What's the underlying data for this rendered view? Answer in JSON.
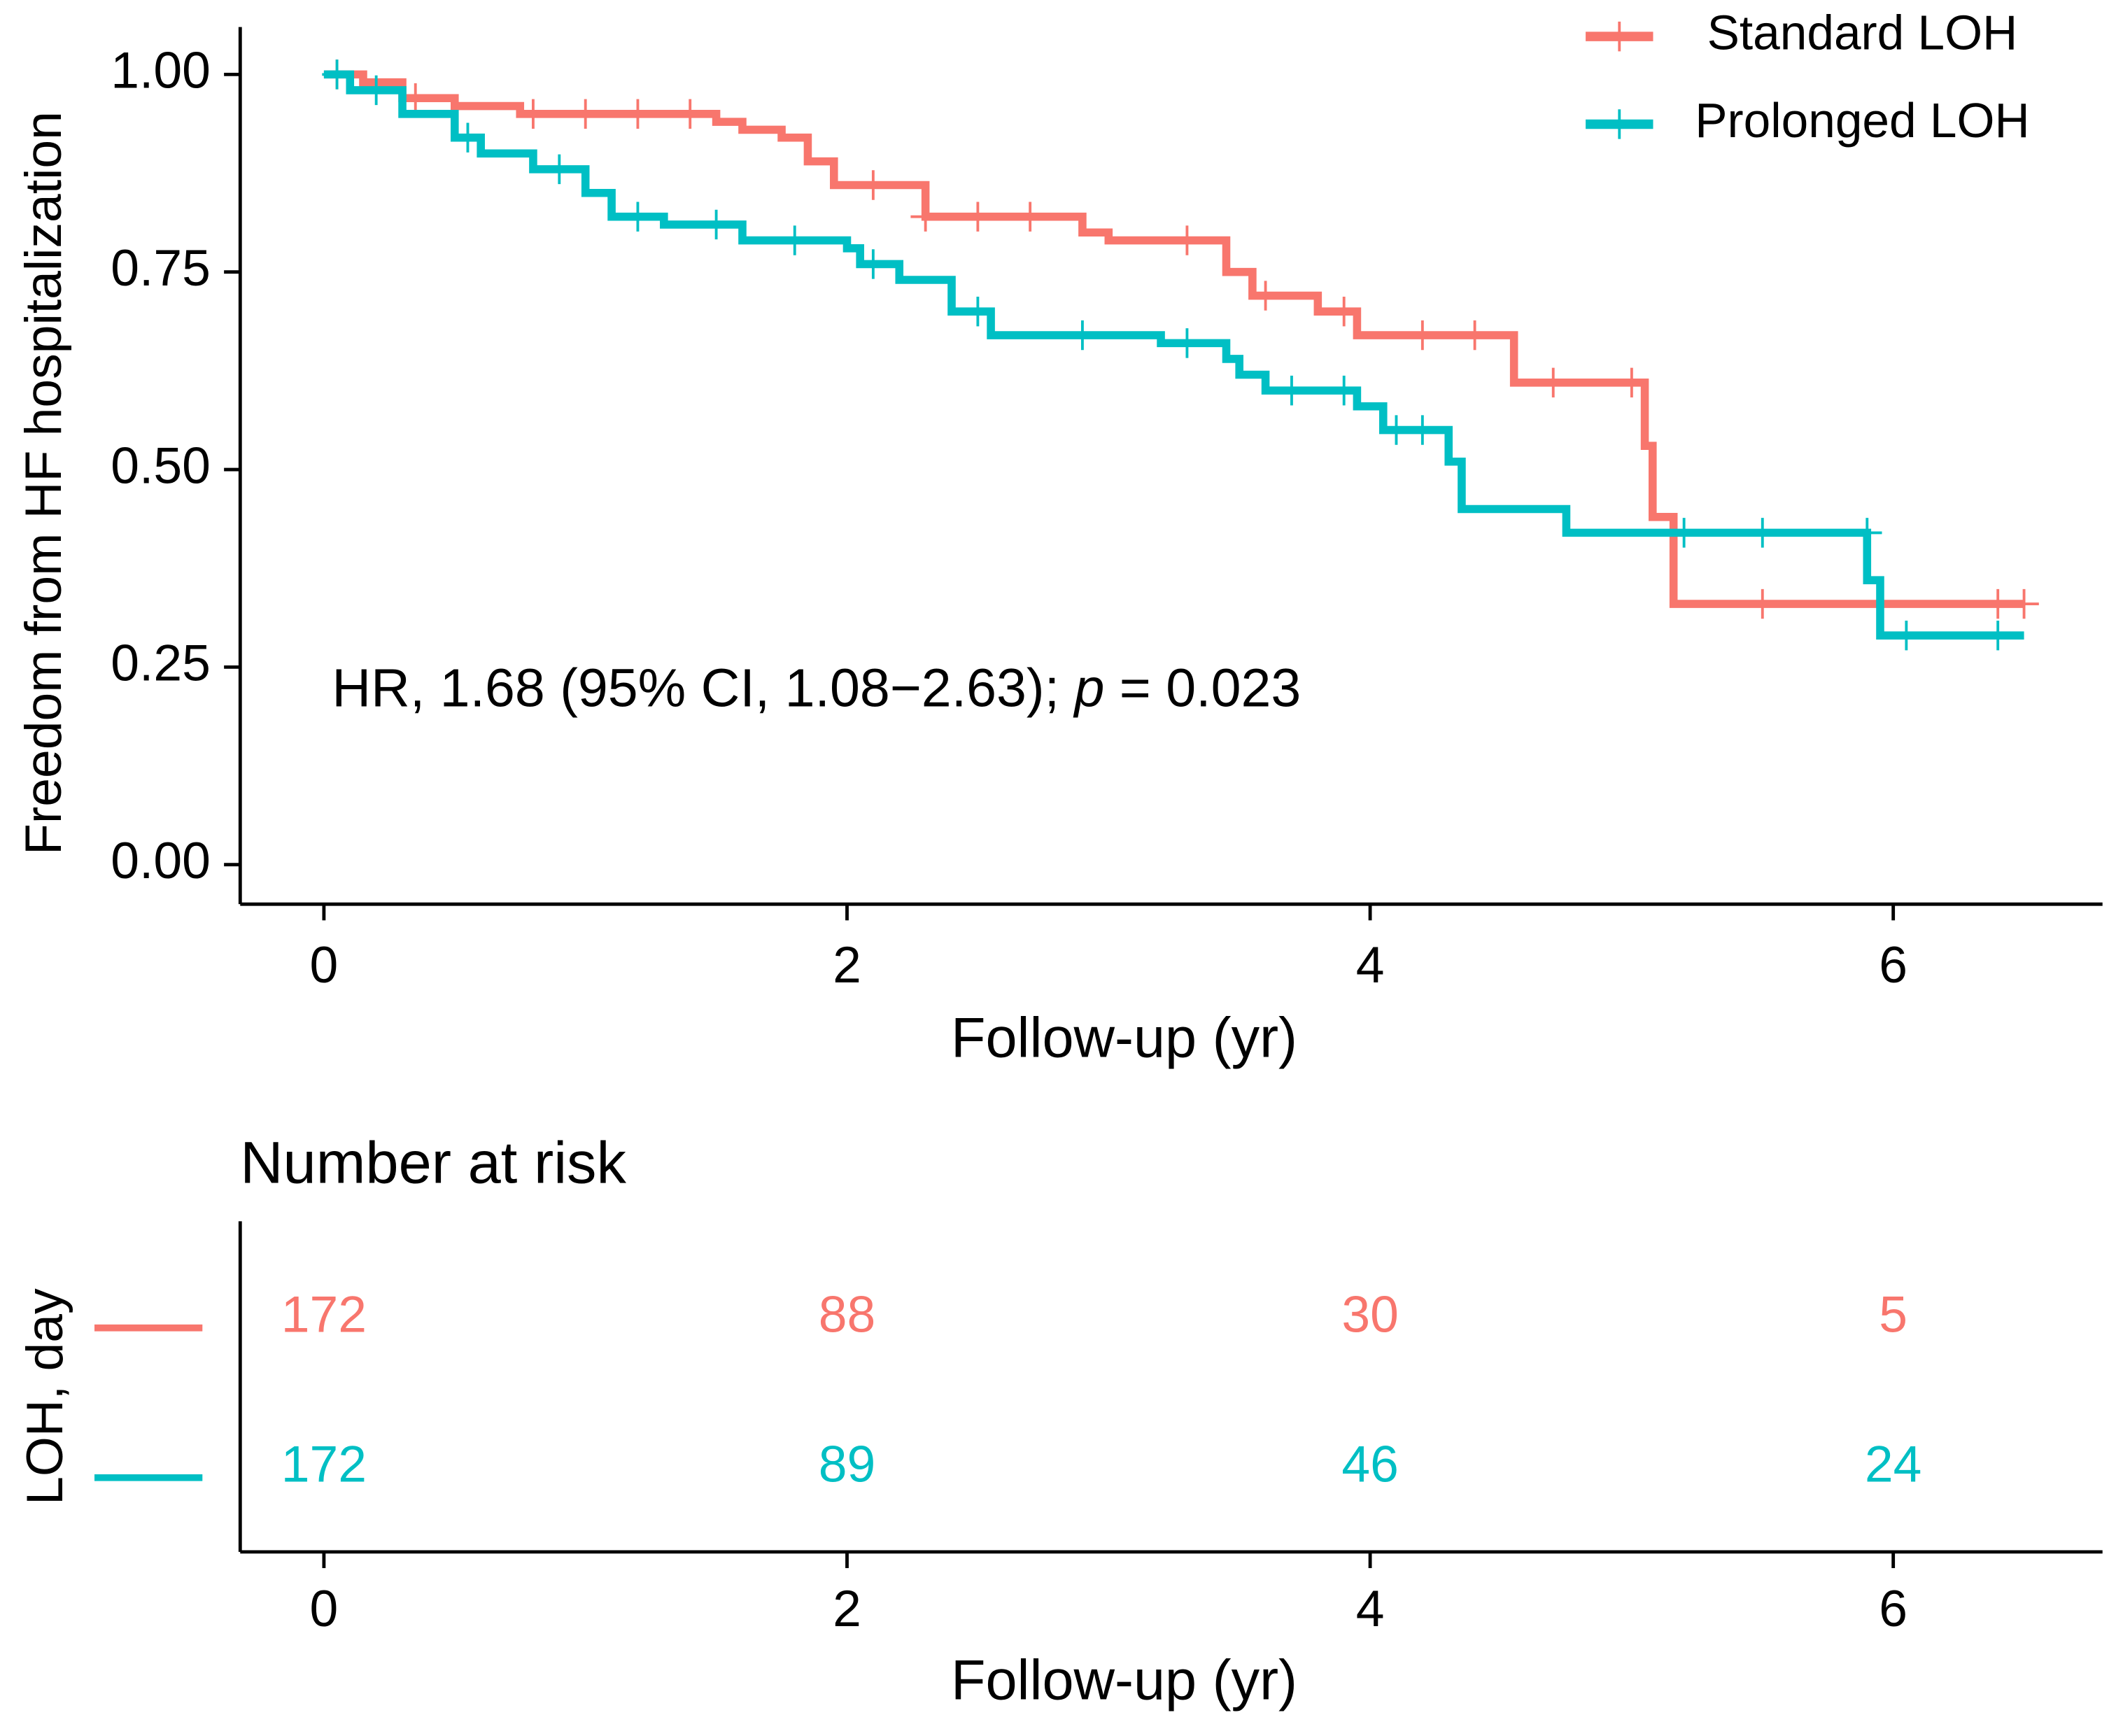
{
  "chart_data": [
    {
      "type": "step",
      "ylabel": "Freedom from HF hospitalization",
      "xlabel": "Follow-up (yr)",
      "xlim": [
        -0.32,
        6.8
      ],
      "xticks": [
        0,
        2,
        4,
        6
      ],
      "ylim": [
        -0.05,
        1.06
      ],
      "yticks": [
        {
          "value": 0,
          "label": "0.00"
        },
        {
          "value": 0.25,
          "label": "0.25"
        },
        {
          "value": 0.5,
          "label": "0.50"
        },
        {
          "value": 0.75,
          "label": "0.75"
        },
        {
          "value": 1,
          "label": "1.00"
        }
      ],
      "legend": "top-right",
      "annotation": {
        "prefix": "HR, 1.68 (95% CI, 1.08−2.63); ",
        "italic": "p",
        "suffix": " = 0.023"
      },
      "series": [
        {
          "name": "Standard LOH",
          "color": "#F8766D",
          "x": [
            0,
            0.15,
            0.3,
            0.5,
            0.75,
            1.5,
            1.6,
            1.75,
            1.85,
            1.95,
            2.3,
            2.9,
            3.0,
            3.45,
            3.55,
            3.8,
            3.95,
            4.55,
            5.05,
            5.08,
            5.16,
            6.5
          ],
          "values": [
            1.0,
            0.99,
            0.97,
            0.96,
            0.95,
            0.94,
            0.93,
            0.92,
            0.89,
            0.86,
            0.82,
            0.8,
            0.79,
            0.75,
            0.72,
            0.7,
            0.67,
            0.61,
            0.53,
            0.44,
            0.33,
            0.33
          ],
          "censor_x": [
            0.05,
            0.35,
            0.8,
            1.0,
            1.2,
            1.4,
            2.1,
            2.3,
            2.5,
            2.7,
            3.3,
            3.6,
            3.9,
            4.2,
            4.4,
            4.7,
            5.0,
            5.5,
            6.4,
            6.5
          ],
          "censor_y": [
            1.0,
            0.97,
            0.95,
            0.95,
            0.95,
            0.95,
            0.86,
            0.82,
            0.82,
            0.82,
            0.79,
            0.72,
            0.7,
            0.67,
            0.67,
            0.61,
            0.61,
            0.33,
            0.33,
            0.33
          ]
        },
        {
          "name": "Prolonged LOH",
          "color": "#00BFC4",
          "x": [
            0,
            0.1,
            0.3,
            0.5,
            0.6,
            0.8,
            1.0,
            1.1,
            1.3,
            1.6,
            2.0,
            2.05,
            2.2,
            2.4,
            2.55,
            3.2,
            3.45,
            3.5,
            3.6,
            3.95,
            4.05,
            4.3,
            4.35,
            4.75,
            5.9,
            5.95,
            6.5
          ],
          "values": [
            1.0,
            0.98,
            0.95,
            0.92,
            0.9,
            0.88,
            0.85,
            0.82,
            0.81,
            0.79,
            0.78,
            0.76,
            0.74,
            0.7,
            0.67,
            0.66,
            0.64,
            0.62,
            0.6,
            0.58,
            0.55,
            0.51,
            0.45,
            0.42,
            0.36,
            0.29,
            0.29
          ],
          "censor_x": [
            0.05,
            0.2,
            0.55,
            0.9,
            1.2,
            1.5,
            1.8,
            2.1,
            2.5,
            2.9,
            3.3,
            3.7,
            3.9,
            4.1,
            4.2,
            5.2,
            5.5,
            5.9,
            6.05,
            6.4
          ],
          "censor_y": [
            1.0,
            0.98,
            0.92,
            0.88,
            0.82,
            0.81,
            0.79,
            0.76,
            0.7,
            0.67,
            0.66,
            0.6,
            0.6,
            0.55,
            0.55,
            0.42,
            0.42,
            0.42,
            0.29,
            0.29
          ]
        }
      ]
    },
    {
      "type": "risk-table",
      "title": "Number at risk",
      "ylabel": "LOH, day",
      "xlabel": "Follow-up (yr)",
      "xlim": [
        -0.32,
        6.8
      ],
      "xticks": [
        0,
        2,
        4,
        6
      ],
      "x": [
        0,
        2,
        4,
        6
      ],
      "series": [
        {
          "color": "#F8766D",
          "values": [
            172,
            88,
            30,
            5
          ]
        },
        {
          "color": "#00BFC4",
          "values": [
            172,
            89,
            46,
            24
          ]
        }
      ]
    }
  ]
}
